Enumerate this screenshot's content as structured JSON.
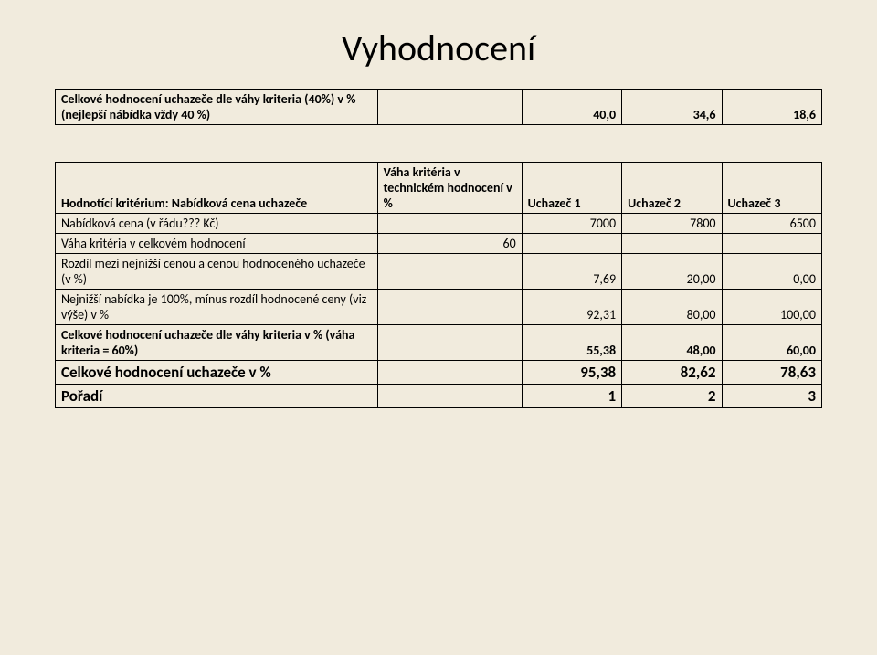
{
  "title": "Vyhodnocení",
  "table1": {
    "row_label": "Celkové hodnocení uchazeče dle váhy kriteria (40%) v % (nejlepší nábídka vždy 40 %)",
    "values": [
      "40,0",
      "34,6",
      "18,6"
    ]
  },
  "table2": {
    "header": {
      "label": "Hodnotící kritérium: Nabídková cena uchazeče",
      "weight_header": "Váha kritéria v technickém hodnocení v %",
      "bidder1": "Uchazeč 1",
      "bidder2": "Uchazeč 2",
      "bidder3": "Uchazeč 3"
    },
    "rows": [
      {
        "label": "Nabídková cena (v řádu??? Kč)",
        "weight": "",
        "v1": "7000",
        "v2": "7800",
        "v3": "6500"
      },
      {
        "label": "Váha kritéria v celkovém hodnocení",
        "weight": "60",
        "v1": "",
        "v2": "",
        "v3": ""
      },
      {
        "label": "Rozdíl mezi nejnižší cenou a cenou hodnoceného uchazeče (v %)",
        "weight": "",
        "v1": "7,69",
        "v2": "20,00",
        "v3": "0,00"
      },
      {
        "label": "Nejnižší nabídka je 100%, mínus rozdíl hodnocené ceny (viz výše) v %",
        "weight": "",
        "v1": "92,31",
        "v2": "80,00",
        "v3": "100,00"
      },
      {
        "label": "Celkové hodnocení uchazeče dle váhy kriteria v % (váha kriteria = 60%)",
        "weight": "",
        "v1": "55,38",
        "v2": "48,00",
        "v3": "60,00",
        "bold": true
      }
    ],
    "total_row": {
      "label": "Celkové hodnocení uchazeče v %",
      "v1": "95,38",
      "v2": "82,62",
      "v3": "78,63"
    },
    "rank_row": {
      "label": "Pořadí",
      "v1": "1",
      "v2": "2",
      "v3": "3"
    }
  },
  "style": {
    "background": "#f1ebdd",
    "border_color": "#000000",
    "title_fontsize": 40,
    "body_fontsize": 14
  }
}
